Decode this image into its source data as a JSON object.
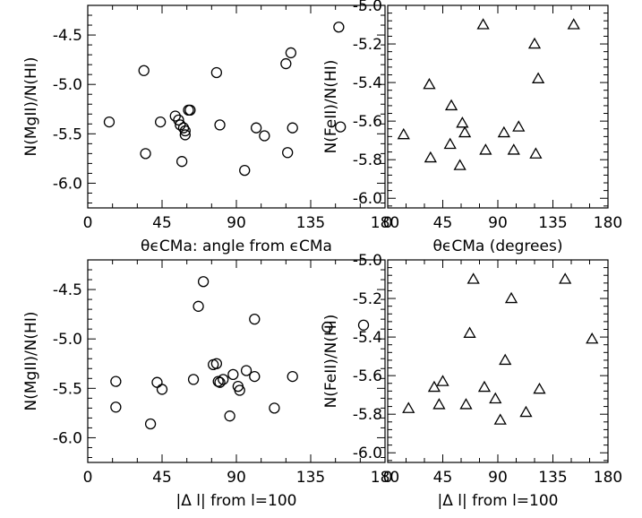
{
  "chart_data": [
    {
      "type": "scatter",
      "marker": "circle",
      "xlabel": "θϵCMa: angle from ϵCMa",
      "ylabel": "N(MgII)/N(HI)",
      "xlim": [
        0,
        180
      ],
      "ylim": [
        -6.25,
        -4.2
      ],
      "xticks": [
        "0",
        "45",
        "90",
        "135",
        "180"
      ],
      "yticks": [
        "-6.0",
        "-5.5",
        "-5.0",
        "-4.5"
      ],
      "points": [
        {
          "x": 13,
          "y": -5.38
        },
        {
          "x": 34,
          "y": -4.86
        },
        {
          "x": 35,
          "y": -5.7
        },
        {
          "x": 44,
          "y": -5.38
        },
        {
          "x": 53,
          "y": -5.32
        },
        {
          "x": 55,
          "y": -5.36
        },
        {
          "x": 56,
          "y": -5.41
        },
        {
          "x": 57,
          "y": -5.78
        },
        {
          "x": 58,
          "y": -5.44
        },
        {
          "x": 59,
          "y": -5.47
        },
        {
          "x": 59,
          "y": -5.51
        },
        {
          "x": 61,
          "y": -5.26
        },
        {
          "x": 62,
          "y": -5.26
        },
        {
          "x": 78,
          "y": -4.88
        },
        {
          "x": 80,
          "y": -5.41
        },
        {
          "x": 95,
          "y": -5.87
        },
        {
          "x": 102,
          "y": -5.44
        },
        {
          "x": 107,
          "y": -5.52
        },
        {
          "x": 120,
          "y": -4.79
        },
        {
          "x": 121,
          "y": -5.69
        },
        {
          "x": 123,
          "y": -4.68
        },
        {
          "x": 124,
          "y": -5.44
        },
        {
          "x": 152,
          "y": -4.42
        },
        {
          "x": 153,
          "y": -5.43
        }
      ]
    },
    {
      "type": "scatter",
      "marker": "triangle",
      "xlabel": "θϵCMa (degrees)",
      "ylabel": "N(FeII)/N(HI)",
      "xlim": [
        0,
        180
      ],
      "ylim": [
        -6.05,
        -5.0
      ],
      "xticks": [
        "0",
        "45",
        "90",
        "135",
        "180"
      ],
      "yticks": [
        "-6.0",
        "-5.8",
        "-5.6",
        "-5.4",
        "-5.2",
        "-5.0"
      ],
      "points": [
        {
          "x": 13,
          "y": -5.67
        },
        {
          "x": 34,
          "y": -5.41
        },
        {
          "x": 35,
          "y": -5.79
        },
        {
          "x": 51,
          "y": -5.72
        },
        {
          "x": 52,
          "y": -5.52
        },
        {
          "x": 59,
          "y": -5.83
        },
        {
          "x": 61,
          "y": -5.61
        },
        {
          "x": 63,
          "y": -5.66
        },
        {
          "x": 78,
          "y": -5.1
        },
        {
          "x": 80,
          "y": -5.75
        },
        {
          "x": 95,
          "y": -5.66
        },
        {
          "x": 103,
          "y": -5.75
        },
        {
          "x": 107,
          "y": -5.63
        },
        {
          "x": 120,
          "y": -5.2
        },
        {
          "x": 121,
          "y": -5.77
        },
        {
          "x": 123,
          "y": -5.38
        },
        {
          "x": 152,
          "y": -5.1
        }
      ]
    },
    {
      "type": "scatter",
      "marker": "circle",
      "xlabel": "|Δ l| from l=100",
      "ylabel": "N(MgII)/N(HI)",
      "xlim": [
        0,
        180
      ],
      "ylim": [
        -6.25,
        -4.2
      ],
      "xticks": [
        "0",
        "45",
        "90",
        "135",
        "180"
      ],
      "yticks": [
        "-6.0",
        "-5.5",
        "-5.0",
        "-4.5"
      ],
      "points": [
        {
          "x": 17,
          "y": -5.43
        },
        {
          "x": 17,
          "y": -5.69
        },
        {
          "x": 38,
          "y": -5.86
        },
        {
          "x": 42,
          "y": -5.44
        },
        {
          "x": 45,
          "y": -5.51
        },
        {
          "x": 64,
          "y": -5.41
        },
        {
          "x": 67,
          "y": -4.67
        },
        {
          "x": 70,
          "y": -4.42
        },
        {
          "x": 76,
          "y": -5.26
        },
        {
          "x": 78,
          "y": -5.25
        },
        {
          "x": 79,
          "y": -5.43
        },
        {
          "x": 80,
          "y": -5.44
        },
        {
          "x": 82,
          "y": -5.41
        },
        {
          "x": 86,
          "y": -5.78
        },
        {
          "x": 88,
          "y": -5.36
        },
        {
          "x": 91,
          "y": -5.48
        },
        {
          "x": 92,
          "y": -5.52
        },
        {
          "x": 96,
          "y": -5.32
        },
        {
          "x": 101,
          "y": -4.8
        },
        {
          "x": 101,
          "y": -5.38
        },
        {
          "x": 113,
          "y": -5.7
        },
        {
          "x": 124,
          "y": -5.38
        },
        {
          "x": 145,
          "y": -4.88
        },
        {
          "x": 167,
          "y": -4.86
        }
      ]
    },
    {
      "type": "scatter",
      "marker": "triangle",
      "xlabel": "|Δ l| from l=100",
      "ylabel": "N(FeII)/N(HI)",
      "xlim": [
        0,
        180
      ],
      "ylim": [
        -6.05,
        -5.0
      ],
      "xticks": [
        "0",
        "45",
        "90",
        "135",
        "180"
      ],
      "yticks": [
        "-6.0",
        "-5.8",
        "-5.6",
        "-5.4",
        "-5.2",
        "-5.0"
      ],
      "points": [
        {
          "x": 17,
          "y": -5.77
        },
        {
          "x": 38,
          "y": -5.66
        },
        {
          "x": 42,
          "y": -5.75
        },
        {
          "x": 45,
          "y": -5.63
        },
        {
          "x": 64,
          "y": -5.75
        },
        {
          "x": 67,
          "y": -5.38
        },
        {
          "x": 70,
          "y": -5.1
        },
        {
          "x": 79,
          "y": -5.66
        },
        {
          "x": 88,
          "y": -5.72
        },
        {
          "x": 92,
          "y": -5.83
        },
        {
          "x": 96,
          "y": -5.52
        },
        {
          "x": 101,
          "y": -5.2
        },
        {
          "x": 113,
          "y": -5.79
        },
        {
          "x": 124,
          "y": -5.67
        },
        {
          "x": 145,
          "y": -5.1
        },
        {
          "x": 167,
          "y": -5.41
        }
      ]
    }
  ]
}
